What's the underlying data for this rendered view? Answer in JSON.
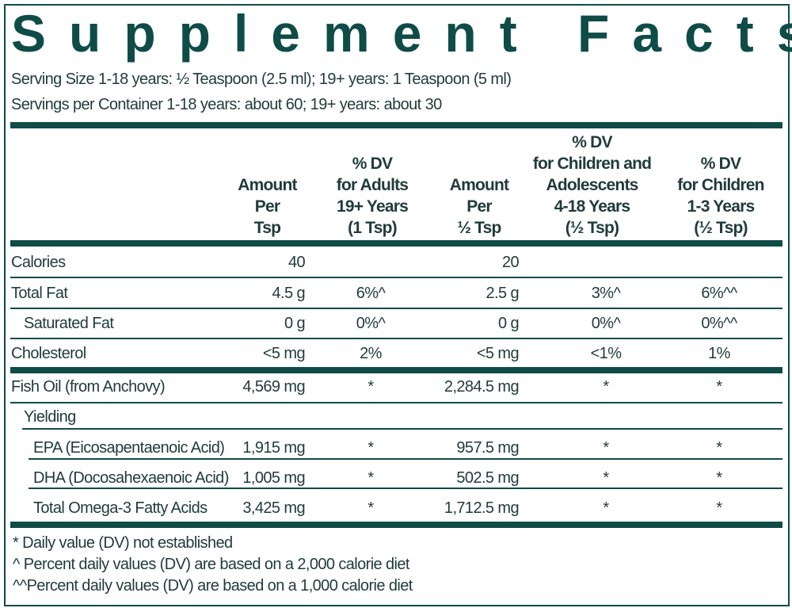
{
  "title": "Supplement Facts",
  "serving_size": "Serving Size 1-18 years: ½  Teaspoon (2.5 ml); 19+ years: 1 Teaspoon (5 ml)",
  "servings_per_container": "Servings per Container 1-18 years: about 60; 19+ years: about 30",
  "headers": [
    [
      "Amount",
      "Per",
      "Tsp"
    ],
    [
      "% DV",
      "for Adults",
      "19+ Years",
      "(1 Tsp)"
    ],
    [
      "Amount",
      "Per",
      "½ Tsp"
    ],
    [
      "% DV",
      "for Children and",
      "Adolescents",
      "4-18 Years",
      "(½ Tsp)"
    ],
    [
      "% DV",
      "for Children",
      "1-3 Years",
      "(½ Tsp)"
    ]
  ],
  "rows": [
    {
      "label": "Calories",
      "c1": "40",
      "c2": "",
      "c3": "20",
      "c4": "",
      "c5": ""
    },
    {
      "label": "Total Fat",
      "c1": "4.5 g",
      "c2": "6%^",
      "c3": "2.5 g",
      "c4": "3%^",
      "c5": "6%^^"
    },
    {
      "label": "Saturated Fat",
      "c1": "0 g",
      "c2": "0%^",
      "c3": "0 g",
      "c4": "0%^",
      "c5": "0%^^"
    },
    {
      "label": "Cholesterol",
      "c1": "<5 mg",
      "c2": "2%",
      "c3": "<5 mg",
      "c4": "<1%",
      "c5": "1%"
    },
    {
      "label": "Fish Oil (from Anchovy)",
      "c1": "4,569 mg",
      "c2": "*",
      "c3": "2,284.5 mg",
      "c4": "*",
      "c5": "*"
    },
    {
      "label": "Yielding",
      "c1": "",
      "c2": "",
      "c3": "",
      "c4": "",
      "c5": ""
    },
    {
      "label": "EPA (Eicosapentaenoic Acid)",
      "c1": "1,915 mg",
      "c2": "*",
      "c3": "957.5 mg",
      "c4": "*",
      "c5": "*"
    },
    {
      "label": "DHA (Docosahexaenoic Acid)",
      "c1": "1,005 mg",
      "c2": "*",
      "c3": "502.5 mg",
      "c4": "*",
      "c5": "*"
    },
    {
      "label": "Total Omega-3 Fatty Acids",
      "c1": "3,425 mg",
      "c2": "*",
      "c3": "1,712.5 mg",
      "c4": "*",
      "c5": "*"
    }
  ],
  "footnotes": [
    "*  Daily value (DV) not established",
    "^  Percent daily values (DV) are based on a 2,000 calorie diet",
    "^^Percent daily values (DV) are based on a 1,000 calorie diet"
  ],
  "colors": {
    "accent": "#0f4c47",
    "text": "#1f3b3a"
  }
}
